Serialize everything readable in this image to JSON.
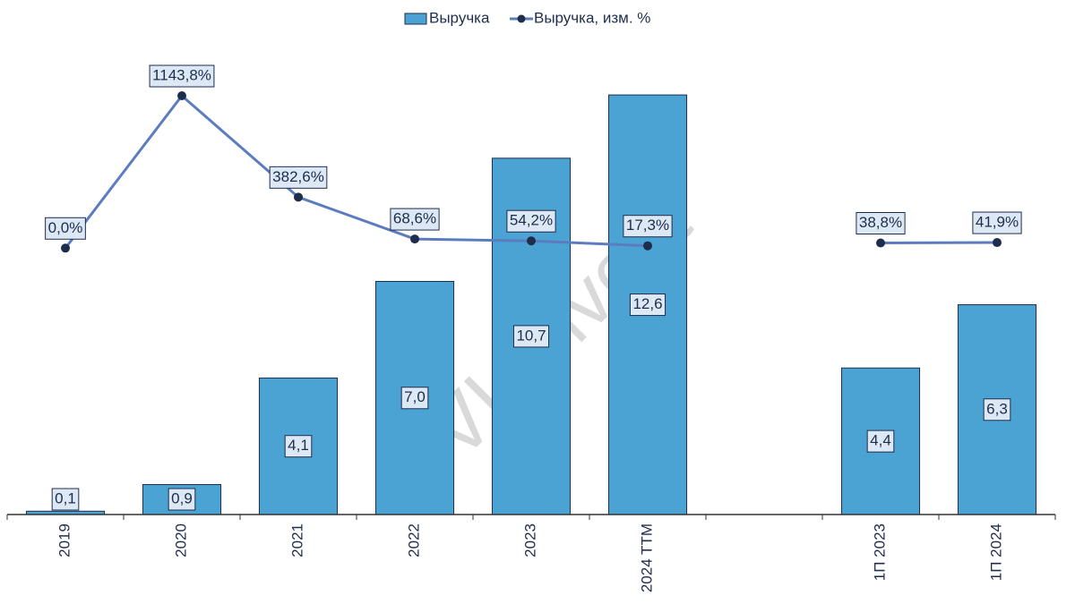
{
  "chart_data": {
    "type": "bar",
    "watermark": "VL.invest",
    "categories": [
      "2019",
      "2020",
      "2021",
      "2022",
      "2023",
      "2024 TTM",
      null,
      "1П 2023",
      "1П 2024"
    ],
    "series": [
      {
        "name": "Выручка",
        "type": "bar",
        "color": "#4aa3d3",
        "values": [
          0.1,
          0.9,
          4.1,
          7.0,
          10.7,
          12.6,
          null,
          4.4,
          6.3
        ],
        "value_labels": [
          "0,1",
          "0,9",
          "4,1",
          "7,0",
          "10,7",
          "12,6",
          null,
          "4,4",
          "6,3"
        ]
      },
      {
        "name": "Выручка, изм. %",
        "type": "line",
        "axis": "y2",
        "color": "#5b7dbf",
        "values": [
          0.0,
          1143.8,
          382.6,
          68.6,
          54.2,
          17.3,
          null,
          38.8,
          41.9
        ],
        "value_labels": [
          "0,0%",
          "1143,8%",
          "382,6%",
          "68,6%",
          "54,2%",
          "17,3%",
          null,
          "38,8%",
          "41,9%"
        ]
      }
    ],
    "ylim": [
      0,
      14
    ],
    "y2lim": [
      -2000,
      1500
    ],
    "legend": "top"
  }
}
